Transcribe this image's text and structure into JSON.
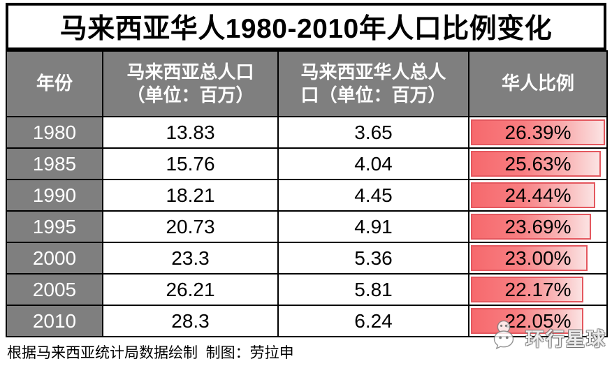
{
  "title": "马来西亚华人1980-2010年人口比例变化",
  "table": {
    "headers": {
      "year": "年份",
      "total": "马来西亚总人口\n（单位：百万）",
      "chinese": "马来西亚华人总人\n口（单位：百万）",
      "ratio": "华人比例"
    },
    "rows": [
      {
        "year": "1980",
        "total": "13.83",
        "chinese": "3.65",
        "ratio": "26.39%",
        "bar_pct": 100
      },
      {
        "year": "1985",
        "total": "15.76",
        "chinese": "4.04",
        "ratio": "25.63%",
        "bar_pct": 97.1
      },
      {
        "year": "1990",
        "total": "18.21",
        "chinese": "4.45",
        "ratio": "24.44%",
        "bar_pct": 92.6
      },
      {
        "year": "1995",
        "total": "20.73",
        "chinese": "4.91",
        "ratio": "23.69%",
        "bar_pct": 89.8
      },
      {
        "year": "2000",
        "total": "23.3",
        "chinese": "5.36",
        "ratio": "23.00%",
        "bar_pct": 87.2
      },
      {
        "year": "2005",
        "total": "26.21",
        "chinese": "5.81",
        "ratio": "22.17%",
        "bar_pct": 84.0
      },
      {
        "year": "2010",
        "total": "28.3",
        "chinese": "6.24",
        "ratio": "22.05%",
        "bar_pct": 83.6
      }
    ]
  },
  "footer": {
    "source_note": "根据马来西亚统计局数据绘制  制图：劳拉申"
  },
  "watermark": {
    "label": "环行星球",
    "icon": "wechat-bubbles-icon"
  },
  "colors": {
    "header_gray": "#7f7f7f",
    "grid_black": "#000000",
    "databar_red": "#f6696d",
    "databar_red_light": "#fbe3e3",
    "databar_border": "#e4575e"
  },
  "chart_data": {
    "type": "table",
    "title": "马来西亚华人1980-2010年人口比例变化",
    "columns": [
      "年份",
      "马来西亚总人口（单位：百万）",
      "马来西亚华人总人口（单位：百万）",
      "华人比例"
    ],
    "categories": [
      1980,
      1985,
      1990,
      1995,
      2000,
      2005,
      2010
    ],
    "series": [
      {
        "name": "马来西亚总人口（百万）",
        "values": [
          13.83,
          15.76,
          18.21,
          20.73,
          23.3,
          26.21,
          28.3
        ]
      },
      {
        "name": "马来西亚华人总人口（百万）",
        "values": [
          3.65,
          4.04,
          4.45,
          4.91,
          5.36,
          5.81,
          6.24
        ]
      },
      {
        "name": "华人比例（%）",
        "values": [
          26.39,
          25.63,
          24.44,
          23.69,
          23.0,
          22.17,
          22.05
        ]
      }
    ],
    "databar_column": "华人比例",
    "databar_scaling": "bar_width = value / max(26.39)",
    "source_note": "根据马来西亚统计局数据绘制 制图：劳拉申"
  }
}
